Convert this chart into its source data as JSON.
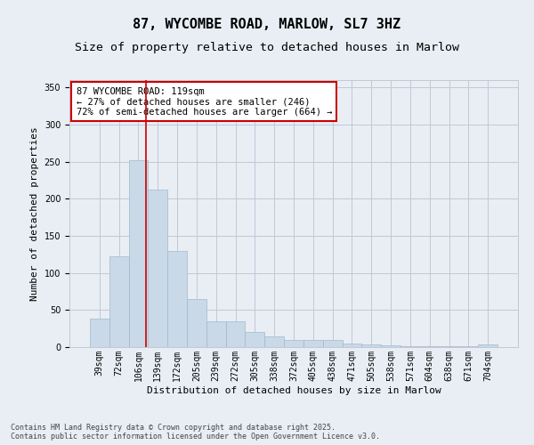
{
  "title": "87, WYCOMBE ROAD, MARLOW, SL7 3HZ",
  "subtitle": "Size of property relative to detached houses in Marlow",
  "xlabel": "Distribution of detached houses by size in Marlow",
  "ylabel": "Number of detached properties",
  "bar_labels": [
    "39sqm",
    "72sqm",
    "106sqm",
    "139sqm",
    "172sqm",
    "205sqm",
    "239sqm",
    "272sqm",
    "305sqm",
    "338sqm",
    "372sqm",
    "405sqm",
    "438sqm",
    "471sqm",
    "505sqm",
    "538sqm",
    "571sqm",
    "604sqm",
    "638sqm",
    "671sqm",
    "704sqm"
  ],
  "bar_values": [
    38,
    122,
    252,
    212,
    130,
    65,
    35,
    35,
    20,
    15,
    10,
    10,
    10,
    5,
    4,
    2,
    1,
    1,
    1,
    1,
    4
  ],
  "bar_color": "#c9d9e8",
  "bar_edge_color": "#a0b8cc",
  "grid_color": "#c0c8d8",
  "background_color": "#e8eef4",
  "vline_color": "#cc0000",
  "vline_x": 2.4,
  "annotation_text": "87 WYCOMBE ROAD: 119sqm\n← 27% of detached houses are smaller (246)\n72% of semi-detached houses are larger (664) →",
  "annotation_box_color": "#ffffff",
  "annotation_box_edge": "#cc0000",
  "ylim": [
    0,
    360
  ],
  "yticks": [
    0,
    50,
    100,
    150,
    200,
    250,
    300,
    350
  ],
  "footer_text": "Contains HM Land Registry data © Crown copyright and database right 2025.\nContains public sector information licensed under the Open Government Licence v3.0.",
  "title_fontsize": 11,
  "subtitle_fontsize": 9.5,
  "axis_label_fontsize": 8,
  "tick_fontsize": 7,
  "annotation_fontsize": 7.5,
  "footer_fontsize": 6
}
